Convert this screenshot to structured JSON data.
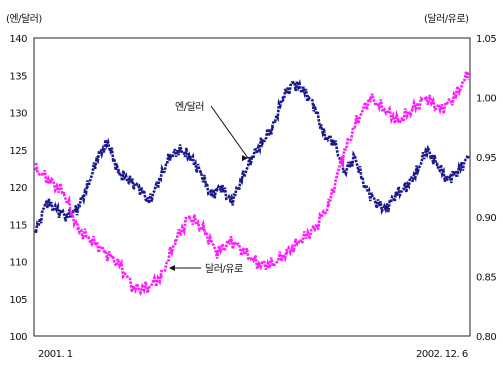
{
  "chart_data": {
    "type": "line",
    "left_axis_unit": "(엔/달러)",
    "right_axis_unit": "(달러/유로)",
    "left_ylim": [
      100,
      140
    ],
    "right_ylim": [
      0.8,
      1.05
    ],
    "left_ticks": [
      "100",
      "105",
      "110",
      "115",
      "120",
      "125",
      "130",
      "135",
      "140"
    ],
    "right_ticks": [
      "0.80",
      "0.85",
      "0.90",
      "0.95",
      "1.00",
      "1.05"
    ],
    "x_start_label": "2001. 1",
    "x_end_label": "2002. 12. 6",
    "grid": false,
    "series": [
      {
        "name": "엔/달러",
        "axis": "left",
        "color": "#1a1a8c",
        "values": [
          114,
          118,
          117,
          116,
          117,
          120,
          124,
          126,
          122,
          121,
          120,
          118,
          121,
          124,
          125,
          124,
          122,
          119,
          120,
          118,
          121,
          124,
          126,
          128,
          132,
          134,
          133,
          131,
          127,
          126,
          122,
          124,
          120,
          118,
          117,
          119,
          120,
          122,
          125,
          123,
          121,
          122,
          124
        ]
      },
      {
        "name": "달러/유로",
        "axis": "right",
        "color": "#ff1aff",
        "values": [
          0.94,
          0.93,
          0.92,
          0.89,
          0.88,
          0.87,
          0.86,
          0.84,
          0.84,
          0.85,
          0.88,
          0.9,
          0.89,
          0.87,
          0.88,
          0.87,
          0.86,
          0.86,
          0.87,
          0.88,
          0.89,
          0.91,
          0.95,
          0.98,
          1.0,
          0.99,
          0.98,
          0.99,
          1.0,
          0.99,
          1.0,
          1.02
        ]
      }
    ],
    "annotations": [
      {
        "text": "엔/달러",
        "series": 0
      },
      {
        "text": "달러/유로",
        "series": 1
      }
    ]
  }
}
